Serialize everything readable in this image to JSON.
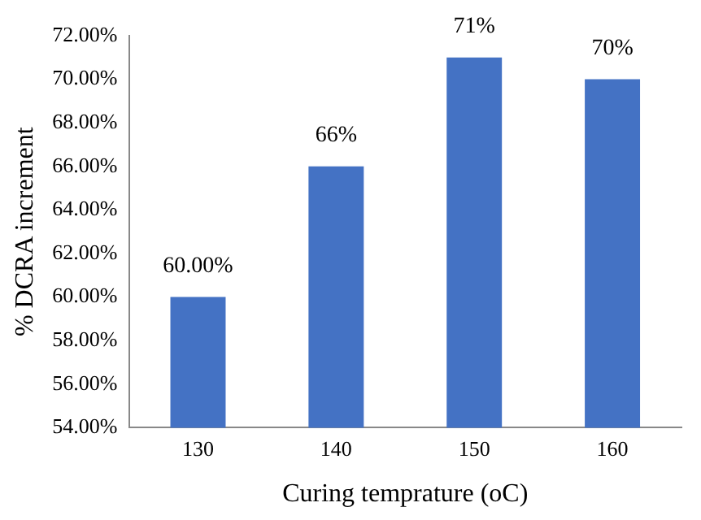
{
  "chart_data": {
    "type": "bar",
    "xlabel": "Curing temprature (oC)",
    "ylabel": "% DCRA increment",
    "categories": [
      "130",
      "140",
      "150",
      "160"
    ],
    "values": [
      60,
      66,
      71,
      70
    ],
    "value_labels": [
      "60.00%",
      "66%",
      "71%",
      "70%"
    ],
    "color": "#4472c4",
    "ylim": [
      54,
      72
    ],
    "yticks": [
      {
        "value": 54,
        "label": "54.00%"
      },
      {
        "value": 56,
        "label": "56.00%"
      },
      {
        "value": 58,
        "label": "58.00%"
      },
      {
        "value": 60,
        "label": "60.00%"
      },
      {
        "value": 62,
        "label": "62.00%"
      },
      {
        "value": 64,
        "label": "64.00%"
      },
      {
        "value": 66,
        "label": "66.00%"
      },
      {
        "value": 68,
        "label": "68.00%"
      },
      {
        "value": 70,
        "label": "70.00%"
      },
      {
        "value": 72,
        "label": "72.00%"
      }
    ],
    "grid": false,
    "legend": false
  }
}
